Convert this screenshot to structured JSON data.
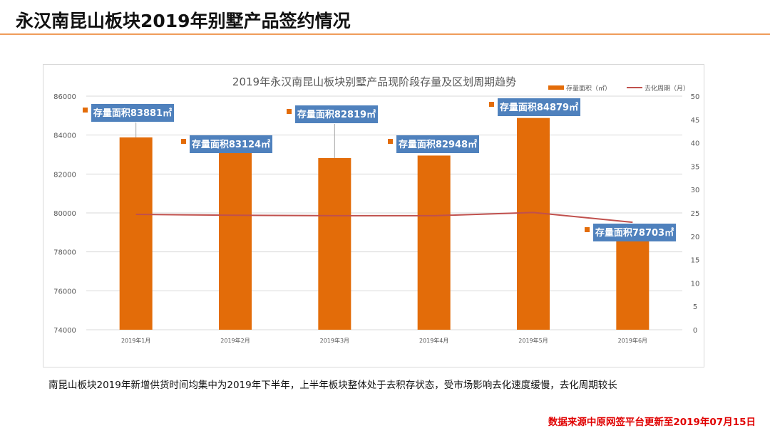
{
  "header": {
    "title": "永汉南昆山板块2019年别墅产品签约情况"
  },
  "footer": {
    "note": "南昆山板块2019年新增供货时间均集中为2019年下半年，上半年板块整体处于去积存状态，受市场影响去化速度缓慢，去化周期较长",
    "source": "数据来源中原网签平台更新至2019年07月15日"
  },
  "chart_data": {
    "type": "bar+line",
    "title": "2019年永汉南昆山板块别墅产品现阶段存量及区划周期趋势",
    "categories": [
      "2019年1月",
      "2019年2月",
      "2019年3月",
      "2019年4月",
      "2019年5月",
      "2019年6月"
    ],
    "series": [
      {
        "name": "存量面积（㎡）",
        "type": "bar",
        "axis": "left",
        "color": "#e36c09",
        "values": [
          83881,
          83124,
          82819,
          82948,
          84879,
          78703
        ],
        "labels": [
          "存量面积83881㎡",
          "存量面积83124㎡",
          "存量面积82819㎡",
          "存量面积82948㎡",
          "存量面积84879㎡",
          "存量面积78703㎡"
        ]
      },
      {
        "name": "去化周期（月）",
        "type": "line",
        "axis": "right",
        "color": "#c0504d",
        "values": [
          24.7,
          24.5,
          24.4,
          24.4,
          25.1,
          23.0
        ]
      }
    ],
    "yleft": {
      "min": 74000,
      "max": 86000,
      "ticks": [
        74000,
        76000,
        78000,
        80000,
        82000,
        84000,
        86000
      ]
    },
    "yright": {
      "min": 0,
      "max": 50,
      "ticks": [
        0,
        5,
        10,
        15,
        20,
        25,
        30,
        35,
        40,
        45,
        50
      ]
    },
    "grid": true,
    "legend": "top-right",
    "label_color": "#4f81bd"
  }
}
